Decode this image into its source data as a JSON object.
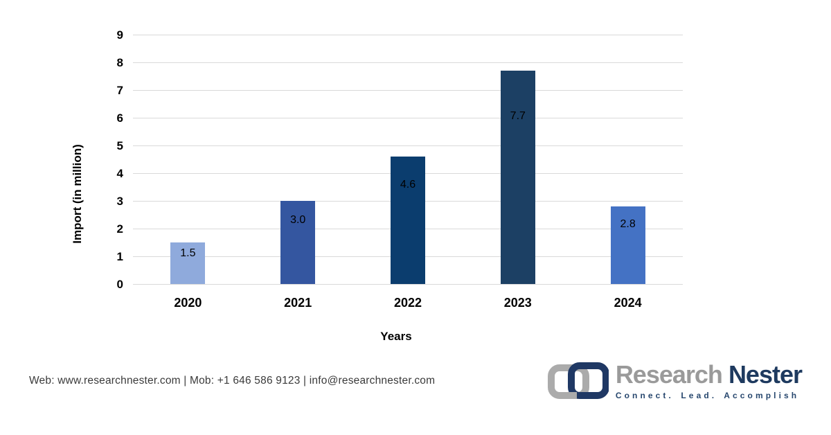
{
  "chart_data": {
    "type": "bar",
    "categories": [
      "2020",
      "2021",
      "2022",
      "2023",
      "2024"
    ],
    "values": [
      1.5,
      3.0,
      4.6,
      7.7,
      2.8
    ],
    "value_labels": [
      "1.5",
      "3.0",
      "4.6",
      "7.7",
      "2.8"
    ],
    "xlabel": "Years",
    "ylabel": "Import (in million)",
    "ylim": [
      0,
      9
    ],
    "ytick_step": 1,
    "grid": true,
    "legend": "none",
    "bar_colors": [
      "#8FAADC",
      "#3456A0",
      "#0B3D6E",
      "#1C4064",
      "#4472C4"
    ],
    "gridline_color": "#D9D9D9",
    "value_label_color": "#000000"
  },
  "footer": {
    "contact": "Web: www.researchnester.com | Mob: +1 646 586 9123 | info@researchnester.com"
  },
  "logo": {
    "name_primary": "Research",
    "name_secondary": "Nester",
    "tagline": "Connect. Lead. Accomplish",
    "colors": {
      "primary_text": "#9A9A9A",
      "secondary_text": "#1E3A5F",
      "mark_gray": "#ABABAB",
      "mark_navy": "#1F3864"
    }
  }
}
